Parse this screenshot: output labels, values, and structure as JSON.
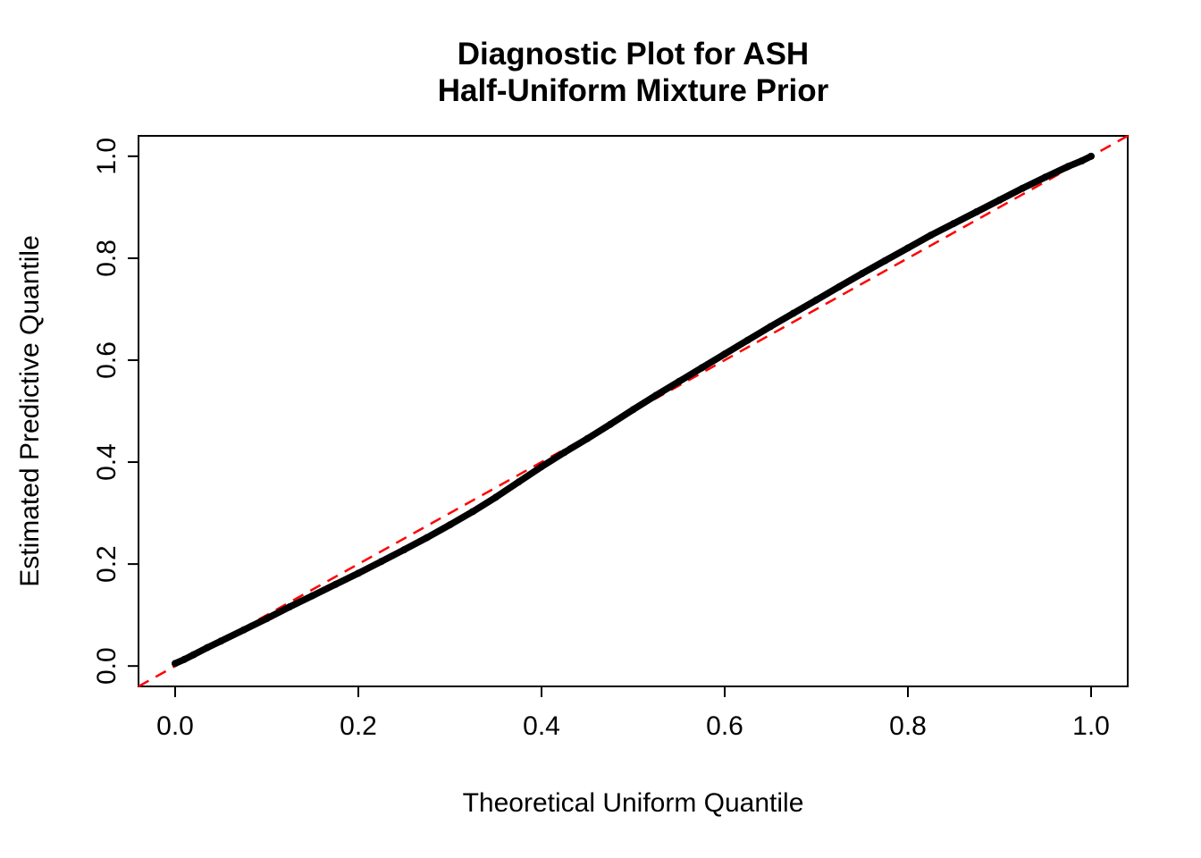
{
  "chart_data": {
    "type": "scatter",
    "title": [
      "Diagnostic Plot for ASH",
      "Half-Uniform Mixture Prior"
    ],
    "xlabel": "Theoretical Uniform Quantile",
    "ylabel": "Estimated Predictive Quantile",
    "xlim": [
      -0.04,
      1.04
    ],
    "ylim": [
      -0.04,
      1.04
    ],
    "x_ticks": [
      "0.0",
      "0.2",
      "0.4",
      "0.6",
      "0.8",
      "1.0"
    ],
    "y_ticks": [
      "0.0",
      "0.2",
      "0.4",
      "0.6",
      "0.8",
      "1.0"
    ],
    "grid": false,
    "legend": "none",
    "colors": {
      "points": "#000000",
      "reference_line": "#FF0000",
      "axis": "#000000",
      "background": "#FFFFFF"
    },
    "reference_line": {
      "type": "identity",
      "slope": 1,
      "intercept": 0,
      "style": "dashed"
    },
    "series": [
      {
        "name": "estimated-vs-theoretical-quantiles",
        "marker": "dot",
        "points": [
          [
            0.0,
            0.005
          ],
          [
            0.01,
            0.013
          ],
          [
            0.02,
            0.022
          ],
          [
            0.035,
            0.036
          ],
          [
            0.05,
            0.049
          ],
          [
            0.075,
            0.071
          ],
          [
            0.1,
            0.093
          ],
          [
            0.125,
            0.116
          ],
          [
            0.15,
            0.138
          ],
          [
            0.175,
            0.16
          ],
          [
            0.2,
            0.182
          ],
          [
            0.225,
            0.205
          ],
          [
            0.25,
            0.228
          ],
          [
            0.275,
            0.252
          ],
          [
            0.3,
            0.277
          ],
          [
            0.325,
            0.303
          ],
          [
            0.35,
            0.331
          ],
          [
            0.375,
            0.361
          ],
          [
            0.4,
            0.391
          ],
          [
            0.425,
            0.419
          ],
          [
            0.45,
            0.446
          ],
          [
            0.475,
            0.474
          ],
          [
            0.5,
            0.503
          ],
          [
            0.525,
            0.531
          ],
          [
            0.55,
            0.558
          ],
          [
            0.575,
            0.585
          ],
          [
            0.6,
            0.612
          ],
          [
            0.625,
            0.639
          ],
          [
            0.65,
            0.666
          ],
          [
            0.675,
            0.692
          ],
          [
            0.7,
            0.718
          ],
          [
            0.725,
            0.744
          ],
          [
            0.75,
            0.77
          ],
          [
            0.775,
            0.795
          ],
          [
            0.8,
            0.82
          ],
          [
            0.825,
            0.845
          ],
          [
            0.85,
            0.868
          ],
          [
            0.875,
            0.891
          ],
          [
            0.9,
            0.914
          ],
          [
            0.925,
            0.937
          ],
          [
            0.95,
            0.959
          ],
          [
            0.975,
            0.98
          ],
          [
            0.99,
            0.991
          ],
          [
            1.0,
            1.0
          ]
        ]
      }
    ]
  }
}
